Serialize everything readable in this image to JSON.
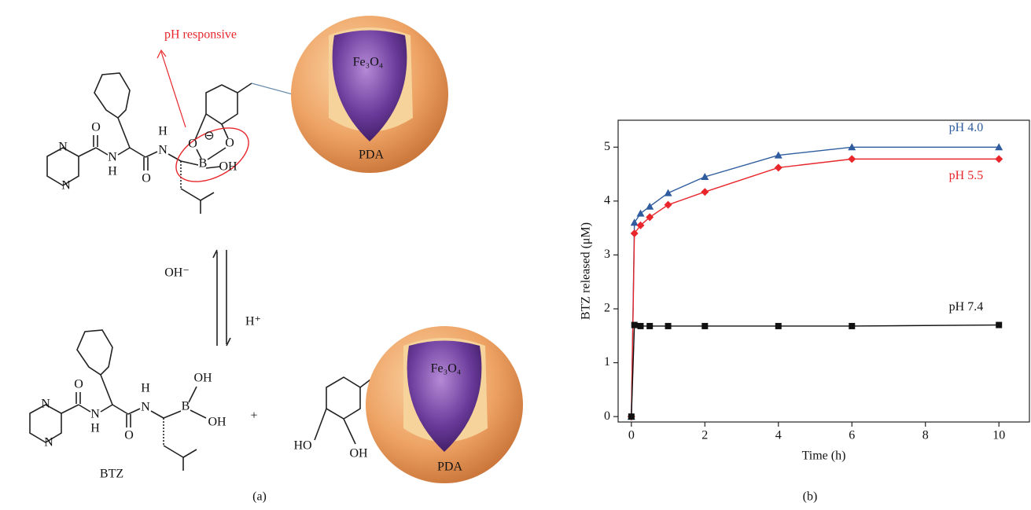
{
  "panel_a": {
    "label": "(a)",
    "annotation": "pH responsive",
    "core": "Fe₃O₄",
    "shell": "PDA",
    "reagent_base": "OH⁻",
    "reagent_acid": "H⁺",
    "drug": "BTZ",
    "plus": "+",
    "atoms_top": [
      "N",
      "N",
      "O",
      "N",
      "H",
      "O",
      "H",
      "N",
      "O",
      "O",
      "B",
      "OH",
      "⊖"
    ],
    "atoms_bottom": [
      "N",
      "N",
      "O",
      "N",
      "H",
      "O",
      "H",
      "N",
      "B",
      "OH",
      "OH"
    ],
    "atoms_catechol": [
      "HO",
      "OH"
    ]
  },
  "panel_b": {
    "label": "(b)"
  },
  "chart_data": {
    "type": "line",
    "x_label": "Time (h)",
    "y_label": "BTZ released (μM)",
    "x": [
      0,
      0.083,
      0.25,
      0.5,
      1,
      2,
      4,
      6,
      10
    ],
    "series": [
      {
        "name": "pH 4.0",
        "color": "#2e5c9e",
        "marker": "triangle",
        "values": [
          0,
          3.6,
          3.77,
          3.9,
          4.15,
          4.45,
          4.85,
          5.0,
          5.0
        ]
      },
      {
        "name": "pH 5.5",
        "color": "#e8262b",
        "marker": "diamond",
        "values": [
          0,
          3.4,
          3.55,
          3.7,
          3.93,
          4.17,
          4.62,
          4.78,
          4.78
        ]
      },
      {
        "name": "pH 7.4",
        "color": "#111111",
        "marker": "square",
        "values": [
          0,
          1.7,
          1.68,
          1.68,
          1.68,
          1.68,
          1.68,
          1.68,
          1.7
        ]
      }
    ],
    "xlim": [
      -0.36,
      10.83
    ],
    "ylim": [
      -0.1,
      5.5
    ],
    "xticks": [
      0,
      2,
      4,
      6,
      8,
      10
    ],
    "yticks": [
      0,
      1,
      2,
      3,
      4,
      5
    ]
  }
}
